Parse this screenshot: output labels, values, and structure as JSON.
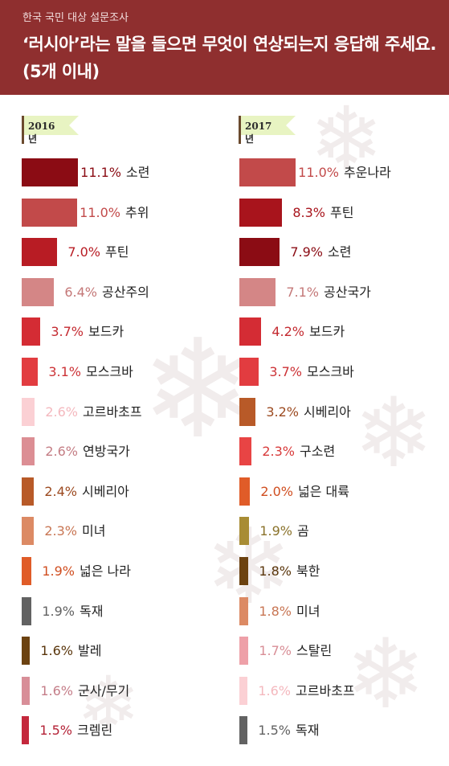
{
  "header": {
    "subtitle": "한국 국민 대상 설문조사",
    "title": "‘러시아’라는 말을 들으면 무엇이 연상되는지 응답해 주세요. (5개 이내)"
  },
  "decor": {
    "snowflake_icon": "❄"
  },
  "chart_data": [
    {
      "type": "bar",
      "title": "2016년",
      "unit": "%",
      "categories": [
        "소련",
        "추위",
        "푸틴",
        "공산주의",
        "보드카",
        "모스크바",
        "고르바초프",
        "연방국가",
        "시베리아",
        "미녀",
        "넓은 나라",
        "독재",
        "발레",
        "군사/무기",
        "크렘린"
      ],
      "values": [
        11.1,
        11.0,
        7.0,
        6.4,
        3.7,
        3.1,
        2.6,
        2.6,
        2.4,
        2.3,
        1.9,
        1.9,
        1.6,
        1.6,
        1.5
      ],
      "labels": [
        "11.1%",
        "11.0%",
        "7.0%",
        "6.4%",
        "3.7%",
        "3.1%",
        "2.6%",
        "2.6%",
        "2.4%",
        "2.3%",
        "1.9%",
        "1.9%",
        "1.6%",
        "1.6%",
        "1.5%"
      ],
      "colors": [
        "#8b0c14",
        "#c24a4a",
        "#b81c24",
        "#d48686",
        "#d42c34",
        "#e23c40",
        "#fbd0d4",
        "#dc8e94",
        "#b85a28",
        "#dc8a64",
        "#e05c28",
        "#626262",
        "#6c4210",
        "#d88e98",
        "#c4283c"
      ],
      "label_colors": [
        "#8b0c14",
        "#c24a4a",
        "#b81c24",
        "#c47878",
        "#c42a30",
        "#cc3236",
        "#f4b8be",
        "#c47d84",
        "#9c4a20",
        "#c87654",
        "#d04e20",
        "#626262",
        "#5a360c",
        "#c47d88",
        "#b42236"
      ]
    },
    {
      "type": "bar",
      "title": "2017년",
      "unit": "%",
      "categories": [
        "추운나라",
        "푸틴",
        "소련",
        "공산국가",
        "보드카",
        "모스크바",
        "시베리아",
        "구소련",
        "넓은 대륙",
        "곰",
        "북한",
        "미녀",
        "스탈린",
        "고르바초프",
        "독재"
      ],
      "values": [
        11.0,
        8.3,
        7.9,
        7.1,
        4.2,
        3.7,
        3.2,
        2.3,
        2.0,
        1.9,
        1.8,
        1.8,
        1.7,
        1.6,
        1.5
      ],
      "labels": [
        "11.0%",
        "8.3%",
        "7.9%",
        "7.1%",
        "4.2%",
        "3.7%",
        "3.2%",
        "2.3%",
        "2.0%",
        "1.9%",
        "1.8%",
        "1.8%",
        "1.7%",
        "1.6%",
        "1.5%"
      ],
      "colors": [
        "#c24a4a",
        "#a8141c",
        "#8b0c14",
        "#d48686",
        "#d42c34",
        "#e23c40",
        "#b85a28",
        "#e84444",
        "#e05c28",
        "#a88c34",
        "#6c4210",
        "#dc8a64",
        "#eea0a8",
        "#fbd0d4",
        "#626262"
      ],
      "label_colors": [
        "#c24a4a",
        "#a8141c",
        "#8b0c14",
        "#c47878",
        "#c42a30",
        "#cc3236",
        "#9c4a20",
        "#d83a3a",
        "#d04e20",
        "#8a722a",
        "#5a360c",
        "#c87654",
        "#d88e96",
        "#f4b8be",
        "#626262"
      ]
    }
  ]
}
